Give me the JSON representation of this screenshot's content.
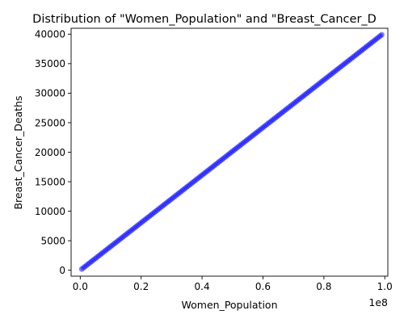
{
  "chart_data": {
    "type": "scatter",
    "title": "Distribution of \"Women_Population\" and \"Breast_Cancer_D",
    "xlabel": "Women_Population",
    "ylabel": "Breast_Cancer_Deaths",
    "x_offset_label": "1e8",
    "xlim": [
      -0.03,
      1.01
    ],
    "ylim": [
      -1000,
      41000
    ],
    "x_ticks": [
      0.0,
      0.2,
      0.4,
      0.6,
      0.8,
      1.0
    ],
    "x_tick_labels": [
      "0.0",
      "0.2",
      "0.4",
      "0.6",
      "0.8",
      "1.0"
    ],
    "y_ticks": [
      0,
      5000,
      10000,
      15000,
      20000,
      25000,
      30000,
      35000,
      40000
    ],
    "y_tick_labels": [
      "0",
      "5000",
      "10000",
      "15000",
      "20000",
      "25000",
      "30000",
      "35000",
      "40000"
    ],
    "grid": false,
    "legend": "none",
    "marker_color": "#0000ff",
    "marker_edge_color": "#6b6bff",
    "marker_opacity": 0.5,
    "series": [
      {
        "x_start": 0.005,
        "x_end": 0.99,
        "y_start": 200,
        "y_end": 39900,
        "count": 200,
        "relationship": "linear"
      }
    ]
  }
}
